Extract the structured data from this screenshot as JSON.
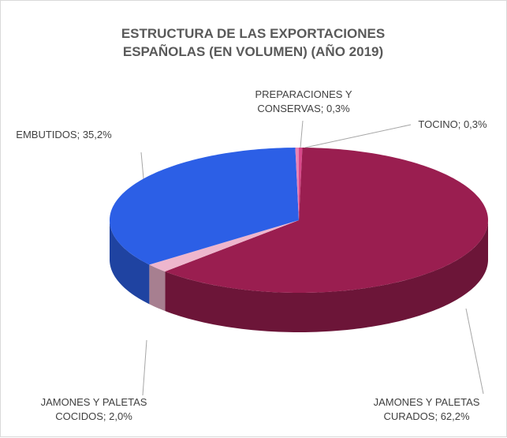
{
  "chart_data": {
    "type": "pie",
    "title": "ESTRUCTURA DE LAS EXPORTACIONES ESPAÑOLAS (EN VOLUMEN) (AÑO 2019)",
    "categories": [
      "TOCINO",
      "JAMONES Y PALETAS CURADOS",
      "JAMONES Y PALETAS COCIDOS",
      "EMBUTIDOS",
      "PREPARACIONES Y CONSERVAS"
    ],
    "values": [
      0.3,
      62.2,
      2.0,
      35.2,
      0.3
    ],
    "value_labels": [
      "0,3%",
      "62,2%",
      "2,0%",
      "35,2%",
      "0,3%"
    ],
    "label_separator": "; ",
    "colors": [
      "#d8488a",
      "#9a1e50",
      "#eeb6cd",
      "#2c5fe6",
      "#e884b4"
    ]
  }
}
